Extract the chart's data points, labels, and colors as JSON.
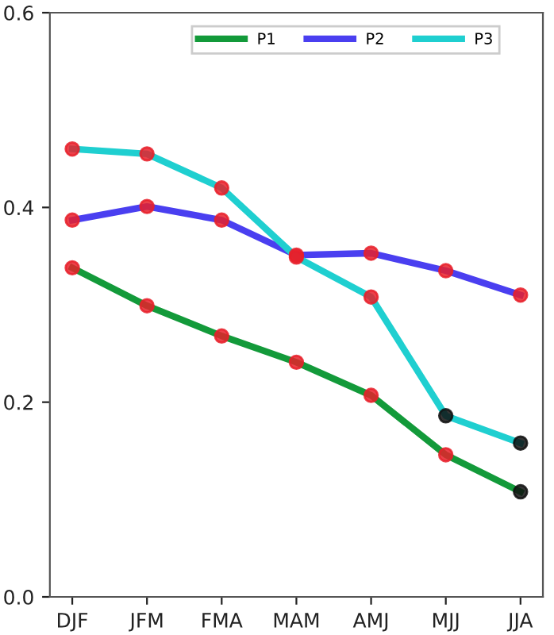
{
  "chart_data": {
    "type": "line",
    "categories": [
      "DJF",
      "JFM",
      "FMA",
      "MAM",
      "AMJ",
      "MJJ",
      "JJA"
    ],
    "series": [
      {
        "name": "P1",
        "color": "#139a3a",
        "values": [
          0.338,
          0.299,
          0.268,
          0.241,
          0.207,
          0.146,
          0.108
        ],
        "colors": [
          "#e8202a",
          "#e8202a",
          "#e8202a",
          "#e8202a",
          "#e8202a",
          "#e8202a",
          "#111111"
        ]
      },
      {
        "name": "P2",
        "color": "#4a3ff0",
        "values": [
          0.387,
          0.401,
          0.387,
          0.351,
          0.353,
          0.335,
          0.31
        ],
        "colors": [
          "#e8202a",
          "#e8202a",
          "#e8202a",
          "#e8202a",
          "#e8202a",
          "#e8202a",
          "#e8202a"
        ]
      },
      {
        "name": "P3",
        "color": "#1fcfd0",
        "values": [
          0.46,
          0.455,
          0.42,
          0.349,
          0.308,
          0.186,
          0.158
        ],
        "colors": [
          "#e8202a",
          "#e8202a",
          "#e8202a",
          "#e8202a",
          "#e8202a",
          "#111111",
          "#111111"
        ]
      }
    ],
    "ylim": [
      0.0,
      0.6
    ],
    "yticks": [
      {
        "value": 0.0,
        "label": "0.0"
      },
      {
        "value": 0.2,
        "label": "0.2"
      },
      {
        "value": 0.4,
        "label": "0.4"
      },
      {
        "value": 0.6,
        "label": "0.6"
      }
    ],
    "grid": false,
    "legend": "top",
    "marker": "circle",
    "line_style": "solid"
  }
}
